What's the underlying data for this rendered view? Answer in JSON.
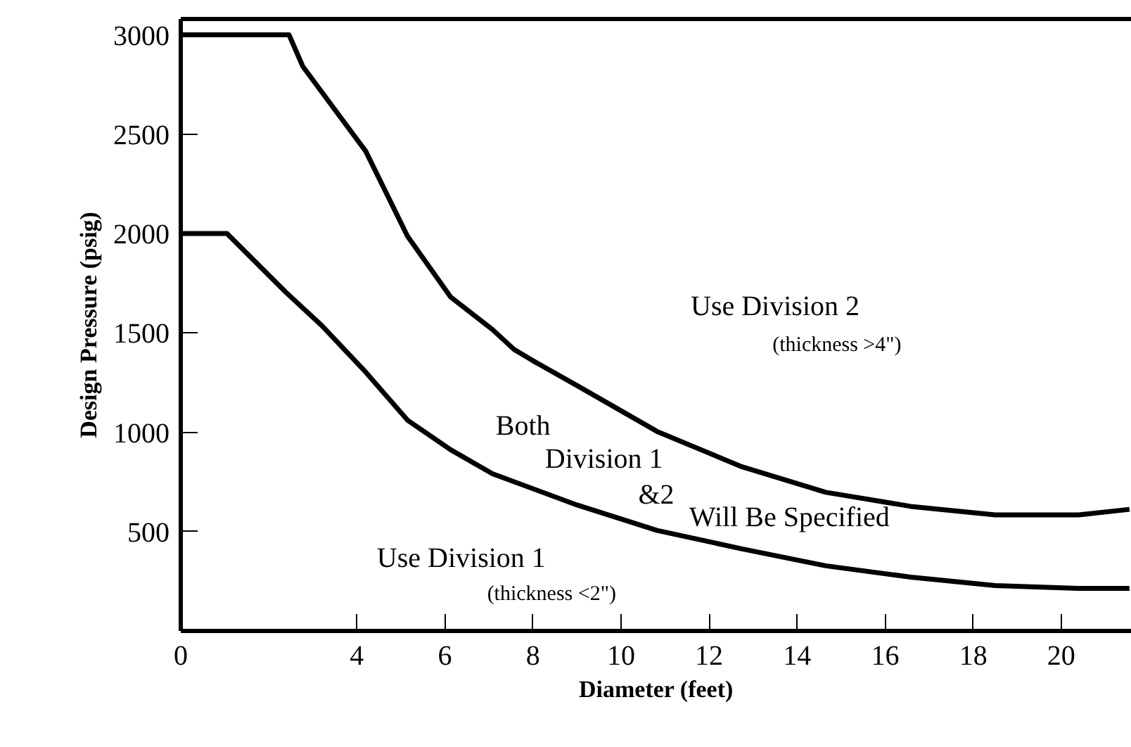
{
  "chart_data": {
    "type": "line",
    "xlabel": "Diameter (feet)",
    "ylabel": "Design Pressure (psig)",
    "xlim": [
      0,
      21.6
    ],
    "ylim": [
      0,
      3080
    ],
    "xticks": [
      0,
      4,
      6,
      8,
      10,
      12,
      14,
      16,
      18,
      20
    ],
    "yticks": [
      500,
      1000,
      1500,
      2000,
      2500,
      3000
    ],
    "grid": false,
    "marker": "none",
    "line_style": "solid",
    "series": [
      {
        "color": "#000000",
        "x": [
          0,
          2.46,
          2.77,
          4.2,
          5.15,
          6.13,
          7.08,
          7.57,
          8.0,
          9.0,
          10.82,
          12.75,
          14.65,
          16.58,
          18.5,
          20.4,
          21.55
        ],
        "values": [
          3000,
          3000,
          2842,
          2415,
          1987,
          1681,
          1517,
          1417,
          1360,
          1235,
          1004,
          826,
          698,
          627,
          584,
          584,
          612
        ]
      },
      {
        "color": "#000000",
        "x": [
          0,
          1.05,
          2.4,
          3.2,
          4.2,
          5.15,
          6.13,
          7.08,
          9.0,
          10.82,
          12.75,
          14.65,
          16.58,
          18.5,
          20.4,
          21.55
        ],
        "values": [
          2000,
          2000,
          1702,
          1538,
          1303,
          1061,
          912,
          791,
          634,
          506,
          413,
          328,
          271,
          228,
          214,
          214
        ]
      }
    ],
    "annotations": [
      "Use Division 2",
      "(thickness >4\")",
      "Both",
      "Division 1",
      "&2",
      "Will Be Specified",
      "Use Division 1",
      "(thickness <2\")"
    ]
  }
}
